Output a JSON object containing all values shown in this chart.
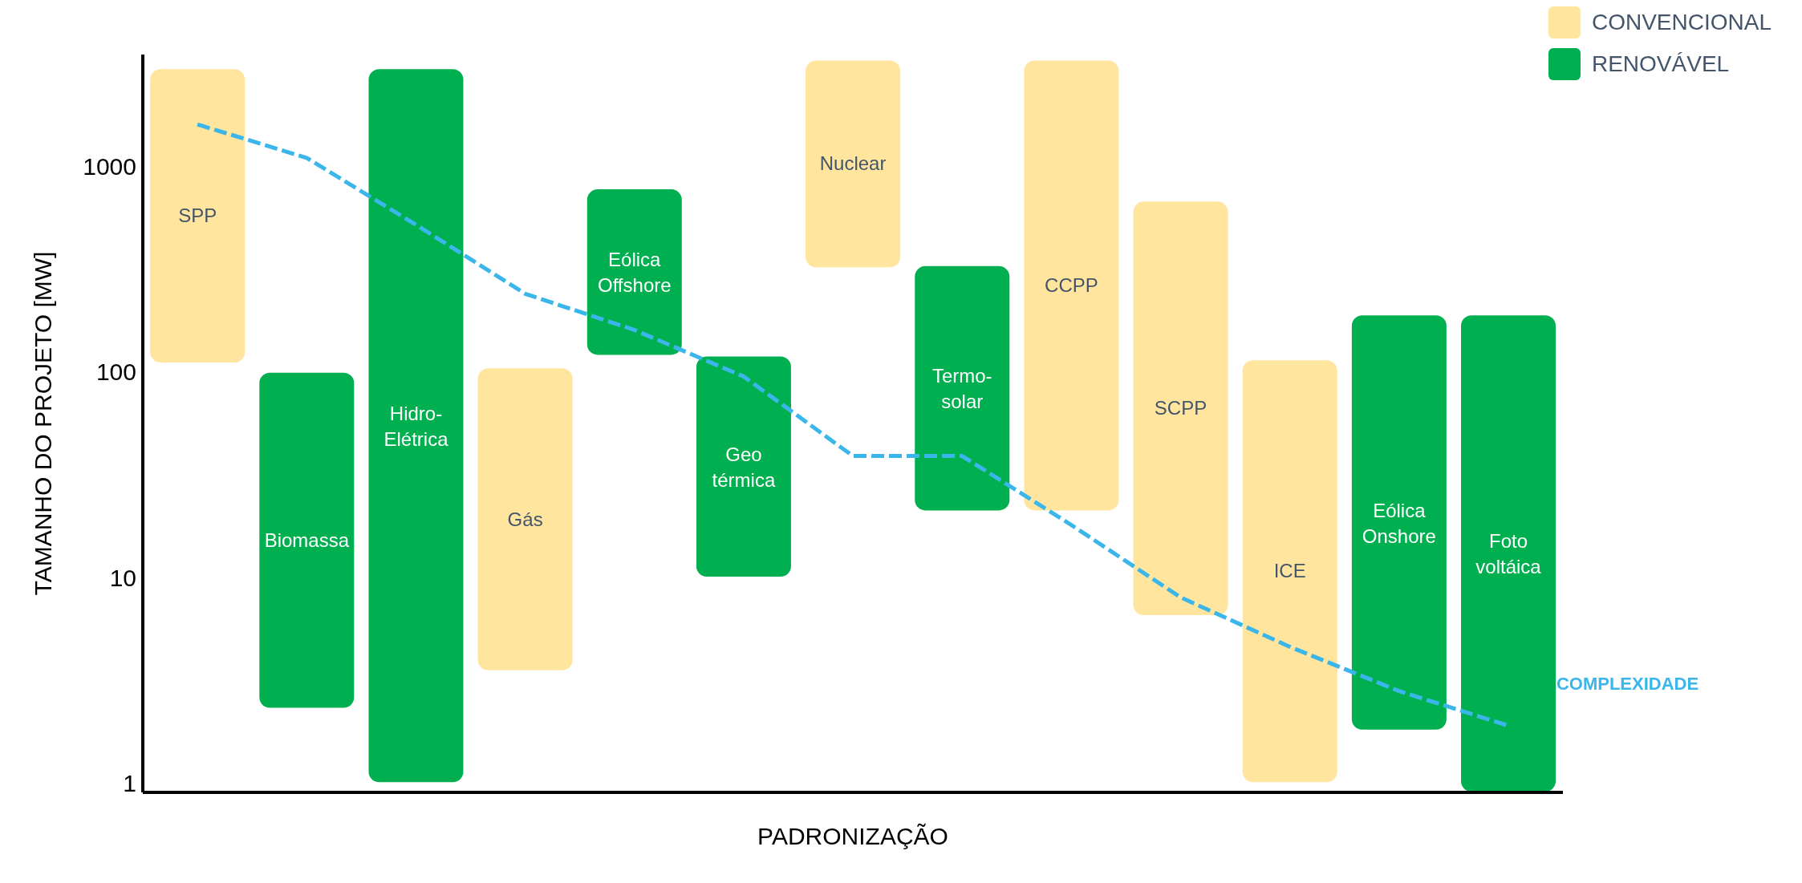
{
  "chart_data": {
    "type": "bar",
    "xlabel": "PADRONIZAÇÃO",
    "ylabel": "TAMANHO DO PROJETO  [MW]",
    "categories": [
      "SPP",
      "Biomassa",
      "Hidro-Elétrica",
      "Gás",
      "Eólica Offshore",
      "Geo térmica",
      "Nuclear",
      "Termo-solar",
      "CCPP",
      "SCPP",
      "ICE",
      "Eólica Onshore",
      "Foto voltáica"
    ],
    "series": [
      {
        "name": "CONVENCIONAL",
        "color": "#ffe59e",
        "base": [
          110,
          null,
          null,
          3.5,
          null,
          null,
          320,
          null,
          21,
          6.5,
          1,
          null,
          null
        ],
        "values": [
          2890,
          null,
          null,
          101.5,
          null,
          null,
          2980,
          null,
          3280,
          673.5,
          114,
          null,
          null
        ]
      },
      {
        "name": "RENOVÁVEL",
        "color": "#00b050",
        "base": [
          null,
          2.3,
          1,
          null,
          120,
          10,
          null,
          21,
          null,
          null,
          null,
          1.8,
          0.9
        ],
        "values": [
          null,
          97.7,
          2999,
          null,
          660,
          110,
          null,
          309,
          null,
          null,
          null,
          188.2,
          189.1
        ]
      },
      {
        "name": "COMPLEXIDADE",
        "type": "line",
        "color": "#3bb6ea",
        "line_style": "dashed",
        "marker": "none",
        "values": [
          1600,
          1100,
          520,
          240,
          160,
          95,
          39,
          39,
          18,
          8,
          4.6,
          2.8,
          1.9
        ]
      }
    ],
    "log": "y",
    "ylim": [
      0.9,
      3500
    ],
    "yticks": [
      1,
      10,
      100,
      1000
    ],
    "tick_labels": "y",
    "grid": false,
    "legend": "top right"
  }
}
